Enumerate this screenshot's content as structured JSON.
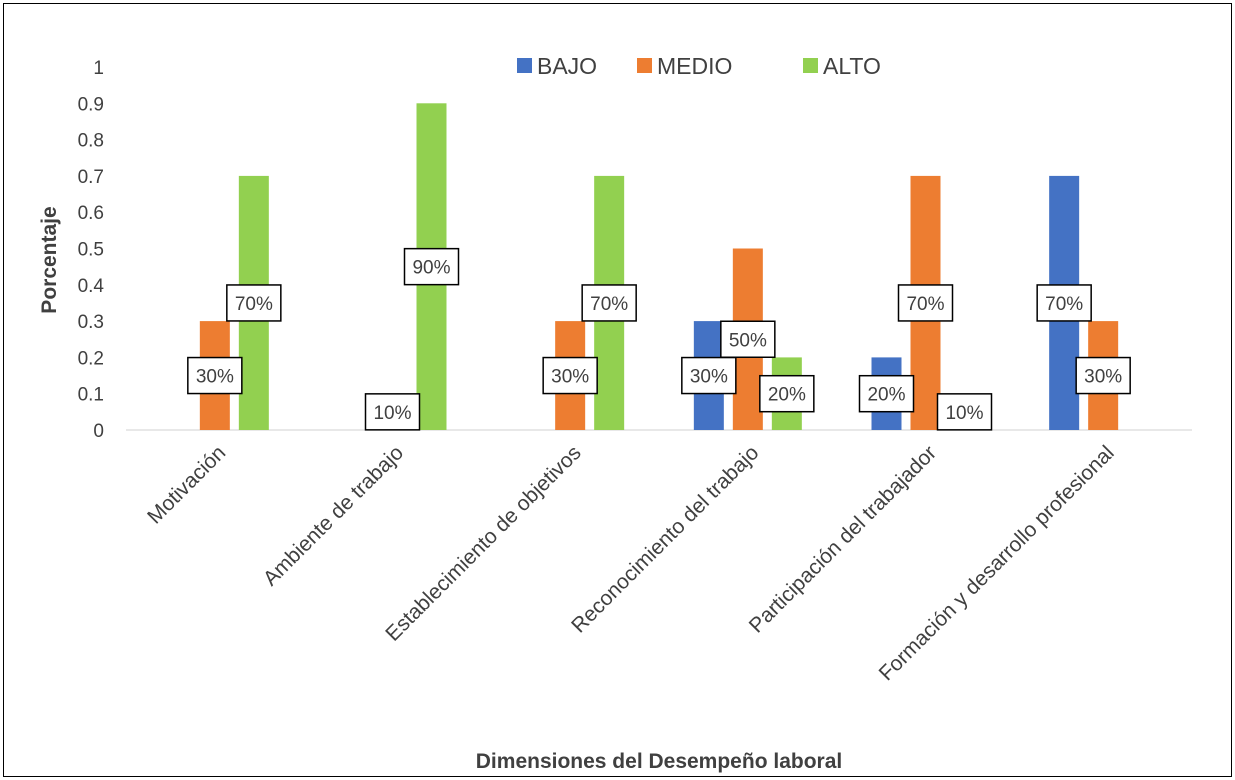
{
  "chart_data": {
    "type": "bar",
    "title": "",
    "xlabel": "Dimensiones del Desempeño laboral",
    "ylabel": "Porcentaje",
    "ylim": [
      0,
      1
    ],
    "yticks": [
      0,
      0.1,
      0.2,
      0.3,
      0.4,
      0.5,
      0.6,
      0.7,
      0.8,
      0.9,
      1
    ],
    "ytick_labels": [
      "0",
      "0.1",
      "0.2",
      "0.3",
      "0.4",
      "0.5",
      "0.6",
      "0.7",
      "0.8",
      "0.9",
      "1"
    ],
    "grid": false,
    "legend_position": "top",
    "categories": [
      "Motivación",
      "Ambiente de trabajo",
      "Establecimiento de objetivos",
      "Reconocimiento del trabajo",
      "Participación del trabajador",
      "Formación y desarrollo profesional"
    ],
    "series": [
      {
        "name": "BAJO",
        "color": "#4472C4",
        "values": [
          0,
          0,
          0,
          0.3,
          0.2,
          0.7
        ],
        "data_labels": [
          "",
          "",
          "",
          "30%",
          "20%",
          "70%"
        ]
      },
      {
        "name": "MEDIO",
        "color": "#ED7D31",
        "values": [
          0.3,
          0.1,
          0.3,
          0.5,
          0.7,
          0.3
        ],
        "data_labels": [
          "30%",
          "10%",
          "30%",
          "50%",
          "70%",
          "30%"
        ]
      },
      {
        "name": "ALTO",
        "color": "#92D050",
        "values": [
          0.7,
          0.9,
          0.7,
          0.2,
          0.1,
          0
        ],
        "data_labels": [
          "70%",
          "90%",
          "70%",
          "20%",
          "10%",
          ""
        ]
      }
    ]
  }
}
